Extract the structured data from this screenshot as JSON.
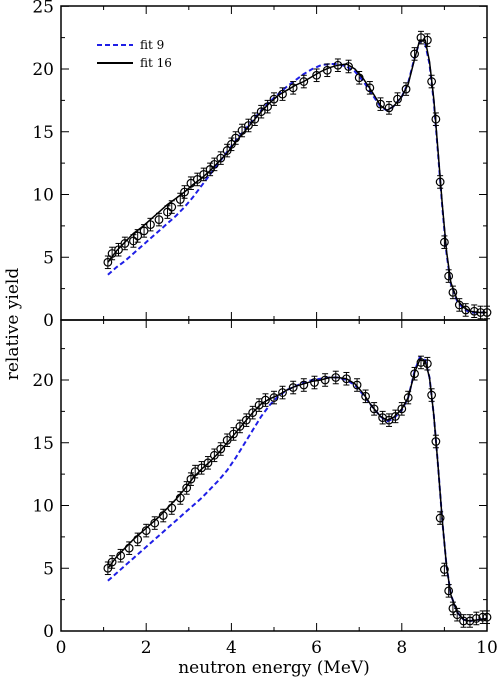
{
  "chart_data": {
    "type": "line",
    "xlabel": "neutron energy (MeV)",
    "ylabel": "relative yield",
    "xlim": [
      0,
      10
    ],
    "ylim": [
      0,
      25
    ],
    "x_ticks": [
      "0",
      "2",
      "4",
      "6",
      "8",
      "10"
    ],
    "y_ticks": [
      "0",
      "5",
      "10",
      "15",
      "20",
      "25"
    ],
    "y_ticks_lower": [
      "0",
      "5",
      "10",
      "15",
      "20"
    ],
    "grid": false,
    "legend_placement": "top-left",
    "panels": [
      {
        "name": "top",
        "legend": [
          {
            "label": "fit 9",
            "color": "#1f1fe6",
            "dash": "dashed"
          },
          {
            "label": "fit 16",
            "color": "#000000",
            "dash": "solid"
          }
        ],
        "data_points": [
          [
            1.1,
            4.6
          ],
          [
            1.2,
            5.3
          ],
          [
            1.35,
            5.6
          ],
          [
            1.5,
            6.1
          ],
          [
            1.7,
            6.3
          ],
          [
            1.8,
            6.7
          ],
          [
            1.95,
            7.1
          ],
          [
            2.1,
            7.6
          ],
          [
            2.3,
            8.0
          ],
          [
            2.5,
            8.6
          ],
          [
            2.6,
            9.0
          ],
          [
            2.8,
            9.6
          ],
          [
            2.9,
            10.2
          ],
          [
            3.05,
            10.9
          ],
          [
            3.2,
            11.2
          ],
          [
            3.35,
            11.6
          ],
          [
            3.5,
            12.0
          ],
          [
            3.6,
            12.4
          ],
          [
            3.75,
            12.9
          ],
          [
            3.9,
            13.5
          ],
          [
            4.0,
            14.0
          ],
          [
            4.1,
            14.5
          ],
          [
            4.25,
            15.1
          ],
          [
            4.4,
            15.5
          ],
          [
            4.55,
            16.0
          ],
          [
            4.7,
            16.6
          ],
          [
            4.85,
            17.0
          ],
          [
            5.0,
            17.6
          ],
          [
            5.2,
            18.0
          ],
          [
            5.45,
            18.5
          ],
          [
            5.7,
            19.0
          ],
          [
            6.0,
            19.5
          ],
          [
            6.25,
            19.9
          ],
          [
            6.5,
            20.3
          ],
          [
            6.75,
            20.2
          ],
          [
            7.0,
            19.3
          ],
          [
            7.25,
            18.5
          ],
          [
            7.5,
            17.2
          ],
          [
            7.7,
            16.9
          ],
          [
            7.9,
            17.6
          ],
          [
            8.1,
            18.4
          ],
          [
            8.3,
            21.2
          ],
          [
            8.45,
            22.5
          ],
          [
            8.6,
            22.3
          ],
          [
            8.7,
            19.0
          ],
          [
            8.8,
            16.0
          ],
          [
            8.9,
            11.0
          ],
          [
            9.0,
            6.2
          ],
          [
            9.1,
            3.5
          ],
          [
            9.2,
            2.2
          ],
          [
            9.35,
            1.2
          ],
          [
            9.5,
            0.8
          ],
          [
            9.7,
            0.7
          ],
          [
            9.85,
            0.6
          ],
          [
            10.0,
            0.6
          ]
        ],
        "fit16": [
          [
            1.1,
            4.6
          ],
          [
            1.3,
            5.5
          ],
          [
            1.5,
            6.2
          ],
          [
            1.7,
            6.9
          ],
          [
            1.9,
            7.4
          ],
          [
            2.1,
            8.0
          ],
          [
            2.3,
            8.6
          ],
          [
            2.5,
            9.2
          ],
          [
            2.7,
            9.7
          ],
          [
            2.9,
            10.2
          ],
          [
            3.1,
            10.8
          ],
          [
            3.3,
            11.3
          ],
          [
            3.5,
            11.9
          ],
          [
            3.7,
            12.6
          ],
          [
            3.9,
            13.3
          ],
          [
            4.1,
            14.2
          ],
          [
            4.3,
            15.0
          ],
          [
            4.5,
            15.8
          ],
          [
            4.7,
            16.6
          ],
          [
            4.9,
            17.3
          ],
          [
            5.1,
            17.9
          ],
          [
            5.3,
            18.3
          ],
          [
            5.5,
            18.7
          ],
          [
            5.7,
            19.0
          ],
          [
            5.9,
            19.4
          ],
          [
            6.1,
            19.8
          ],
          [
            6.3,
            20.1
          ],
          [
            6.5,
            20.3
          ],
          [
            6.7,
            20.4
          ],
          [
            6.9,
            20.0
          ],
          [
            7.1,
            19.2
          ],
          [
            7.3,
            18.2
          ],
          [
            7.5,
            17.1
          ],
          [
            7.65,
            16.7
          ],
          [
            7.8,
            17.0
          ],
          [
            8.0,
            17.8
          ],
          [
            8.15,
            18.8
          ],
          [
            8.3,
            20.8
          ],
          [
            8.42,
            22.3
          ],
          [
            8.55,
            22.3
          ],
          [
            8.65,
            20.6
          ],
          [
            8.75,
            17.6
          ],
          [
            8.85,
            13.5
          ],
          [
            8.95,
            9.2
          ],
          [
            9.05,
            5.5
          ],
          [
            9.15,
            3.0
          ],
          [
            9.3,
            1.6
          ],
          [
            9.45,
            1.0
          ],
          [
            9.6,
            0.7
          ],
          [
            9.8,
            0.6
          ],
          [
            10.0,
            0.6
          ]
        ],
        "fit9": [
          [
            1.1,
            3.6
          ],
          [
            1.3,
            4.2
          ],
          [
            1.5,
            4.7
          ],
          [
            1.7,
            5.3
          ],
          [
            1.9,
            5.9
          ],
          [
            2.1,
            6.5
          ],
          [
            2.3,
            7.1
          ],
          [
            2.5,
            7.7
          ],
          [
            2.7,
            8.3
          ],
          [
            2.9,
            9.0
          ],
          [
            3.1,
            9.8
          ],
          [
            3.3,
            10.7
          ],
          [
            3.5,
            11.6
          ],
          [
            3.7,
            12.5
          ],
          [
            3.9,
            13.4
          ],
          [
            4.1,
            14.3
          ],
          [
            4.3,
            15.1
          ],
          [
            4.5,
            15.9
          ],
          [
            4.7,
            16.7
          ],
          [
            4.9,
            17.4
          ],
          [
            5.1,
            18.0
          ],
          [
            5.3,
            18.6
          ],
          [
            5.5,
            19.1
          ],
          [
            5.7,
            19.6
          ],
          [
            5.9,
            20.0
          ],
          [
            6.1,
            20.3
          ],
          [
            6.3,
            20.4
          ],
          [
            6.5,
            20.4
          ],
          [
            6.7,
            20.2
          ],
          [
            6.9,
            19.8
          ],
          [
            7.1,
            19.0
          ],
          [
            7.3,
            18.0
          ],
          [
            7.5,
            17.0
          ],
          [
            7.65,
            16.7
          ],
          [
            7.8,
            17.0
          ],
          [
            8.0,
            17.8
          ],
          [
            8.15,
            18.9
          ],
          [
            8.3,
            20.9
          ],
          [
            8.42,
            22.2
          ],
          [
            8.55,
            22.0
          ],
          [
            8.65,
            20.4
          ],
          [
            8.75,
            17.4
          ],
          [
            8.85,
            13.3
          ],
          [
            8.95,
            9.0
          ],
          [
            9.05,
            5.3
          ],
          [
            9.15,
            2.9
          ],
          [
            9.3,
            1.5
          ],
          [
            9.45,
            0.9
          ],
          [
            9.6,
            0.6
          ],
          [
            9.8,
            0.6
          ],
          [
            10.0,
            0.6
          ]
        ]
      },
      {
        "name": "bottom",
        "data_points": [
          [
            1.1,
            5.0
          ],
          [
            1.2,
            5.5
          ],
          [
            1.4,
            6.0
          ],
          [
            1.6,
            6.6
          ],
          [
            1.8,
            7.3
          ],
          [
            2.0,
            8.0
          ],
          [
            2.2,
            8.6
          ],
          [
            2.4,
            9.2
          ],
          [
            2.6,
            9.8
          ],
          [
            2.8,
            10.6
          ],
          [
            2.95,
            11.4
          ],
          [
            3.05,
            12.1
          ],
          [
            3.15,
            12.7
          ],
          [
            3.3,
            13.0
          ],
          [
            3.45,
            13.4
          ],
          [
            3.6,
            14.0
          ],
          [
            3.75,
            14.5
          ],
          [
            3.9,
            15.2
          ],
          [
            4.05,
            15.7
          ],
          [
            4.2,
            16.3
          ],
          [
            4.35,
            16.8
          ],
          [
            4.5,
            17.4
          ],
          [
            4.65,
            18.0
          ],
          [
            4.8,
            18.4
          ],
          [
            5.0,
            18.6
          ],
          [
            5.2,
            19.0
          ],
          [
            5.45,
            19.4
          ],
          [
            5.7,
            19.6
          ],
          [
            5.95,
            19.8
          ],
          [
            6.2,
            20.0
          ],
          [
            6.45,
            20.2
          ],
          [
            6.7,
            20.1
          ],
          [
            6.95,
            19.6
          ],
          [
            7.15,
            18.7
          ],
          [
            7.35,
            17.7
          ],
          [
            7.55,
            17.0
          ],
          [
            7.7,
            16.8
          ],
          [
            7.85,
            17.1
          ],
          [
            8.0,
            17.7
          ],
          [
            8.15,
            18.6
          ],
          [
            8.3,
            20.5
          ],
          [
            8.45,
            21.4
          ],
          [
            8.6,
            21.3
          ],
          [
            8.7,
            18.8
          ],
          [
            8.8,
            15.1
          ],
          [
            8.9,
            9.0
          ],
          [
            9.0,
            4.9
          ],
          [
            9.1,
            3.2
          ],
          [
            9.2,
            1.8
          ],
          [
            9.3,
            1.3
          ],
          [
            9.45,
            0.8
          ],
          [
            9.6,
            0.8
          ],
          [
            9.75,
            1.0
          ],
          [
            9.9,
            1.1
          ],
          [
            10.0,
            1.1
          ]
        ],
        "fit16": [
          [
            1.1,
            5.0
          ],
          [
            1.3,
            5.9
          ],
          [
            1.5,
            6.6
          ],
          [
            1.7,
            7.3
          ],
          [
            1.9,
            7.9
          ],
          [
            2.1,
            8.5
          ],
          [
            2.3,
            9.1
          ],
          [
            2.5,
            9.8
          ],
          [
            2.7,
            10.5
          ],
          [
            2.9,
            11.3
          ],
          [
            3.1,
            12.2
          ],
          [
            3.3,
            12.9
          ],
          [
            3.5,
            13.5
          ],
          [
            3.7,
            14.2
          ],
          [
            3.9,
            15.0
          ],
          [
            4.1,
            15.8
          ],
          [
            4.3,
            16.6
          ],
          [
            4.5,
            17.4
          ],
          [
            4.7,
            18.1
          ],
          [
            4.9,
            18.5
          ],
          [
            5.1,
            18.8
          ],
          [
            5.3,
            19.2
          ],
          [
            5.5,
            19.5
          ],
          [
            5.7,
            19.7
          ],
          [
            5.9,
            19.9
          ],
          [
            6.1,
            20.0
          ],
          [
            6.3,
            20.2
          ],
          [
            6.5,
            20.2
          ],
          [
            6.7,
            20.1
          ],
          [
            6.9,
            19.7
          ],
          [
            7.1,
            18.9
          ],
          [
            7.3,
            17.9
          ],
          [
            7.5,
            17.1
          ],
          [
            7.65,
            16.8
          ],
          [
            7.8,
            17.0
          ],
          [
            8.0,
            17.7
          ],
          [
            8.15,
            18.6
          ],
          [
            8.3,
            20.6
          ],
          [
            8.42,
            21.6
          ],
          [
            8.55,
            21.5
          ],
          [
            8.65,
            20.2
          ],
          [
            8.75,
            17.2
          ],
          [
            8.85,
            13.2
          ],
          [
            8.95,
            8.8
          ],
          [
            9.05,
            5.2
          ],
          [
            9.15,
            2.9
          ],
          [
            9.3,
            1.5
          ],
          [
            9.45,
            0.9
          ],
          [
            9.6,
            0.8
          ],
          [
            9.8,
            0.9
          ],
          [
            10.0,
            1.0
          ]
        ],
        "fit9": [
          [
            1.1,
            4.0
          ],
          [
            1.3,
            4.6
          ],
          [
            1.5,
            5.2
          ],
          [
            1.7,
            5.8
          ],
          [
            1.9,
            6.4
          ],
          [
            2.1,
            7.0
          ],
          [
            2.3,
            7.6
          ],
          [
            2.5,
            8.2
          ],
          [
            2.7,
            8.8
          ],
          [
            2.9,
            9.4
          ],
          [
            3.1,
            10.0
          ],
          [
            3.3,
            10.6
          ],
          [
            3.5,
            11.3
          ],
          [
            3.7,
            12.0
          ],
          [
            3.9,
            12.8
          ],
          [
            4.1,
            13.8
          ],
          [
            4.3,
            14.9
          ],
          [
            4.5,
            16.0
          ],
          [
            4.7,
            17.1
          ],
          [
            4.9,
            18.0
          ],
          [
            5.1,
            18.7
          ],
          [
            5.3,
            19.2
          ],
          [
            5.5,
            19.5
          ],
          [
            5.7,
            19.8
          ],
          [
            5.9,
            20.0
          ],
          [
            6.1,
            20.1
          ],
          [
            6.3,
            20.2
          ],
          [
            6.5,
            20.2
          ],
          [
            6.7,
            20.0
          ],
          [
            6.9,
            19.6
          ],
          [
            7.1,
            18.8
          ],
          [
            7.3,
            17.9
          ],
          [
            7.5,
            17.1
          ],
          [
            7.65,
            16.7
          ],
          [
            7.8,
            16.9
          ],
          [
            8.0,
            17.6
          ],
          [
            8.15,
            18.6
          ],
          [
            8.3,
            20.7
          ],
          [
            8.42,
            21.8
          ],
          [
            8.55,
            21.6
          ],
          [
            8.65,
            20.2
          ],
          [
            8.75,
            17.2
          ],
          [
            8.85,
            13.2
          ],
          [
            8.95,
            8.8
          ],
          [
            9.05,
            5.2
          ],
          [
            9.15,
            2.9
          ],
          [
            9.3,
            1.5
          ],
          [
            9.45,
            0.9
          ],
          [
            9.6,
            0.8
          ],
          [
            9.8,
            0.9
          ],
          [
            10.0,
            1.0
          ]
        ]
      }
    ]
  }
}
